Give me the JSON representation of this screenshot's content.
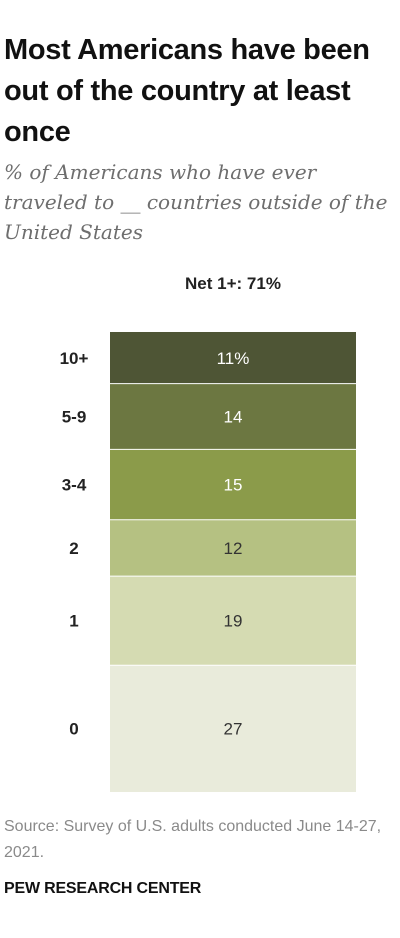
{
  "header": {
    "title": "Most Americans have been out of the country at least once",
    "subtitle": "% of Americans who have ever traveled to __ countries outside of the United States"
  },
  "net_label": "Net 1+: 71%",
  "chart_data": {
    "type": "bar",
    "stacked": true,
    "orientation": "vertical",
    "categories": [
      "10+",
      "5-9",
      "3-4",
      "2",
      "1",
      "0"
    ],
    "values": [
      11,
      14,
      15,
      12,
      19,
      27
    ],
    "value_labels": [
      "11%",
      "14",
      "15",
      "12",
      "19",
      "27"
    ],
    "colors": [
      "#4e5535",
      "#6c7741",
      "#8b9b4a",
      "#b5c182",
      "#d5dbb2",
      "#e9ebdb"
    ],
    "label_colors": [
      "#ffffff",
      "#ffffff",
      "#ffffff",
      "#333333",
      "#333333",
      "#333333"
    ],
    "annotations": [
      "Net 1+: 71%"
    ],
    "title": "Most Americans have been out of the country at least once",
    "subtitle": "% of Americans who have ever traveled to __ countries outside of the United States"
  },
  "footer": {
    "source": "Source: Survey of U.S. adults conducted June 14-27, 2021.",
    "org": "PEW RESEARCH CENTER"
  }
}
